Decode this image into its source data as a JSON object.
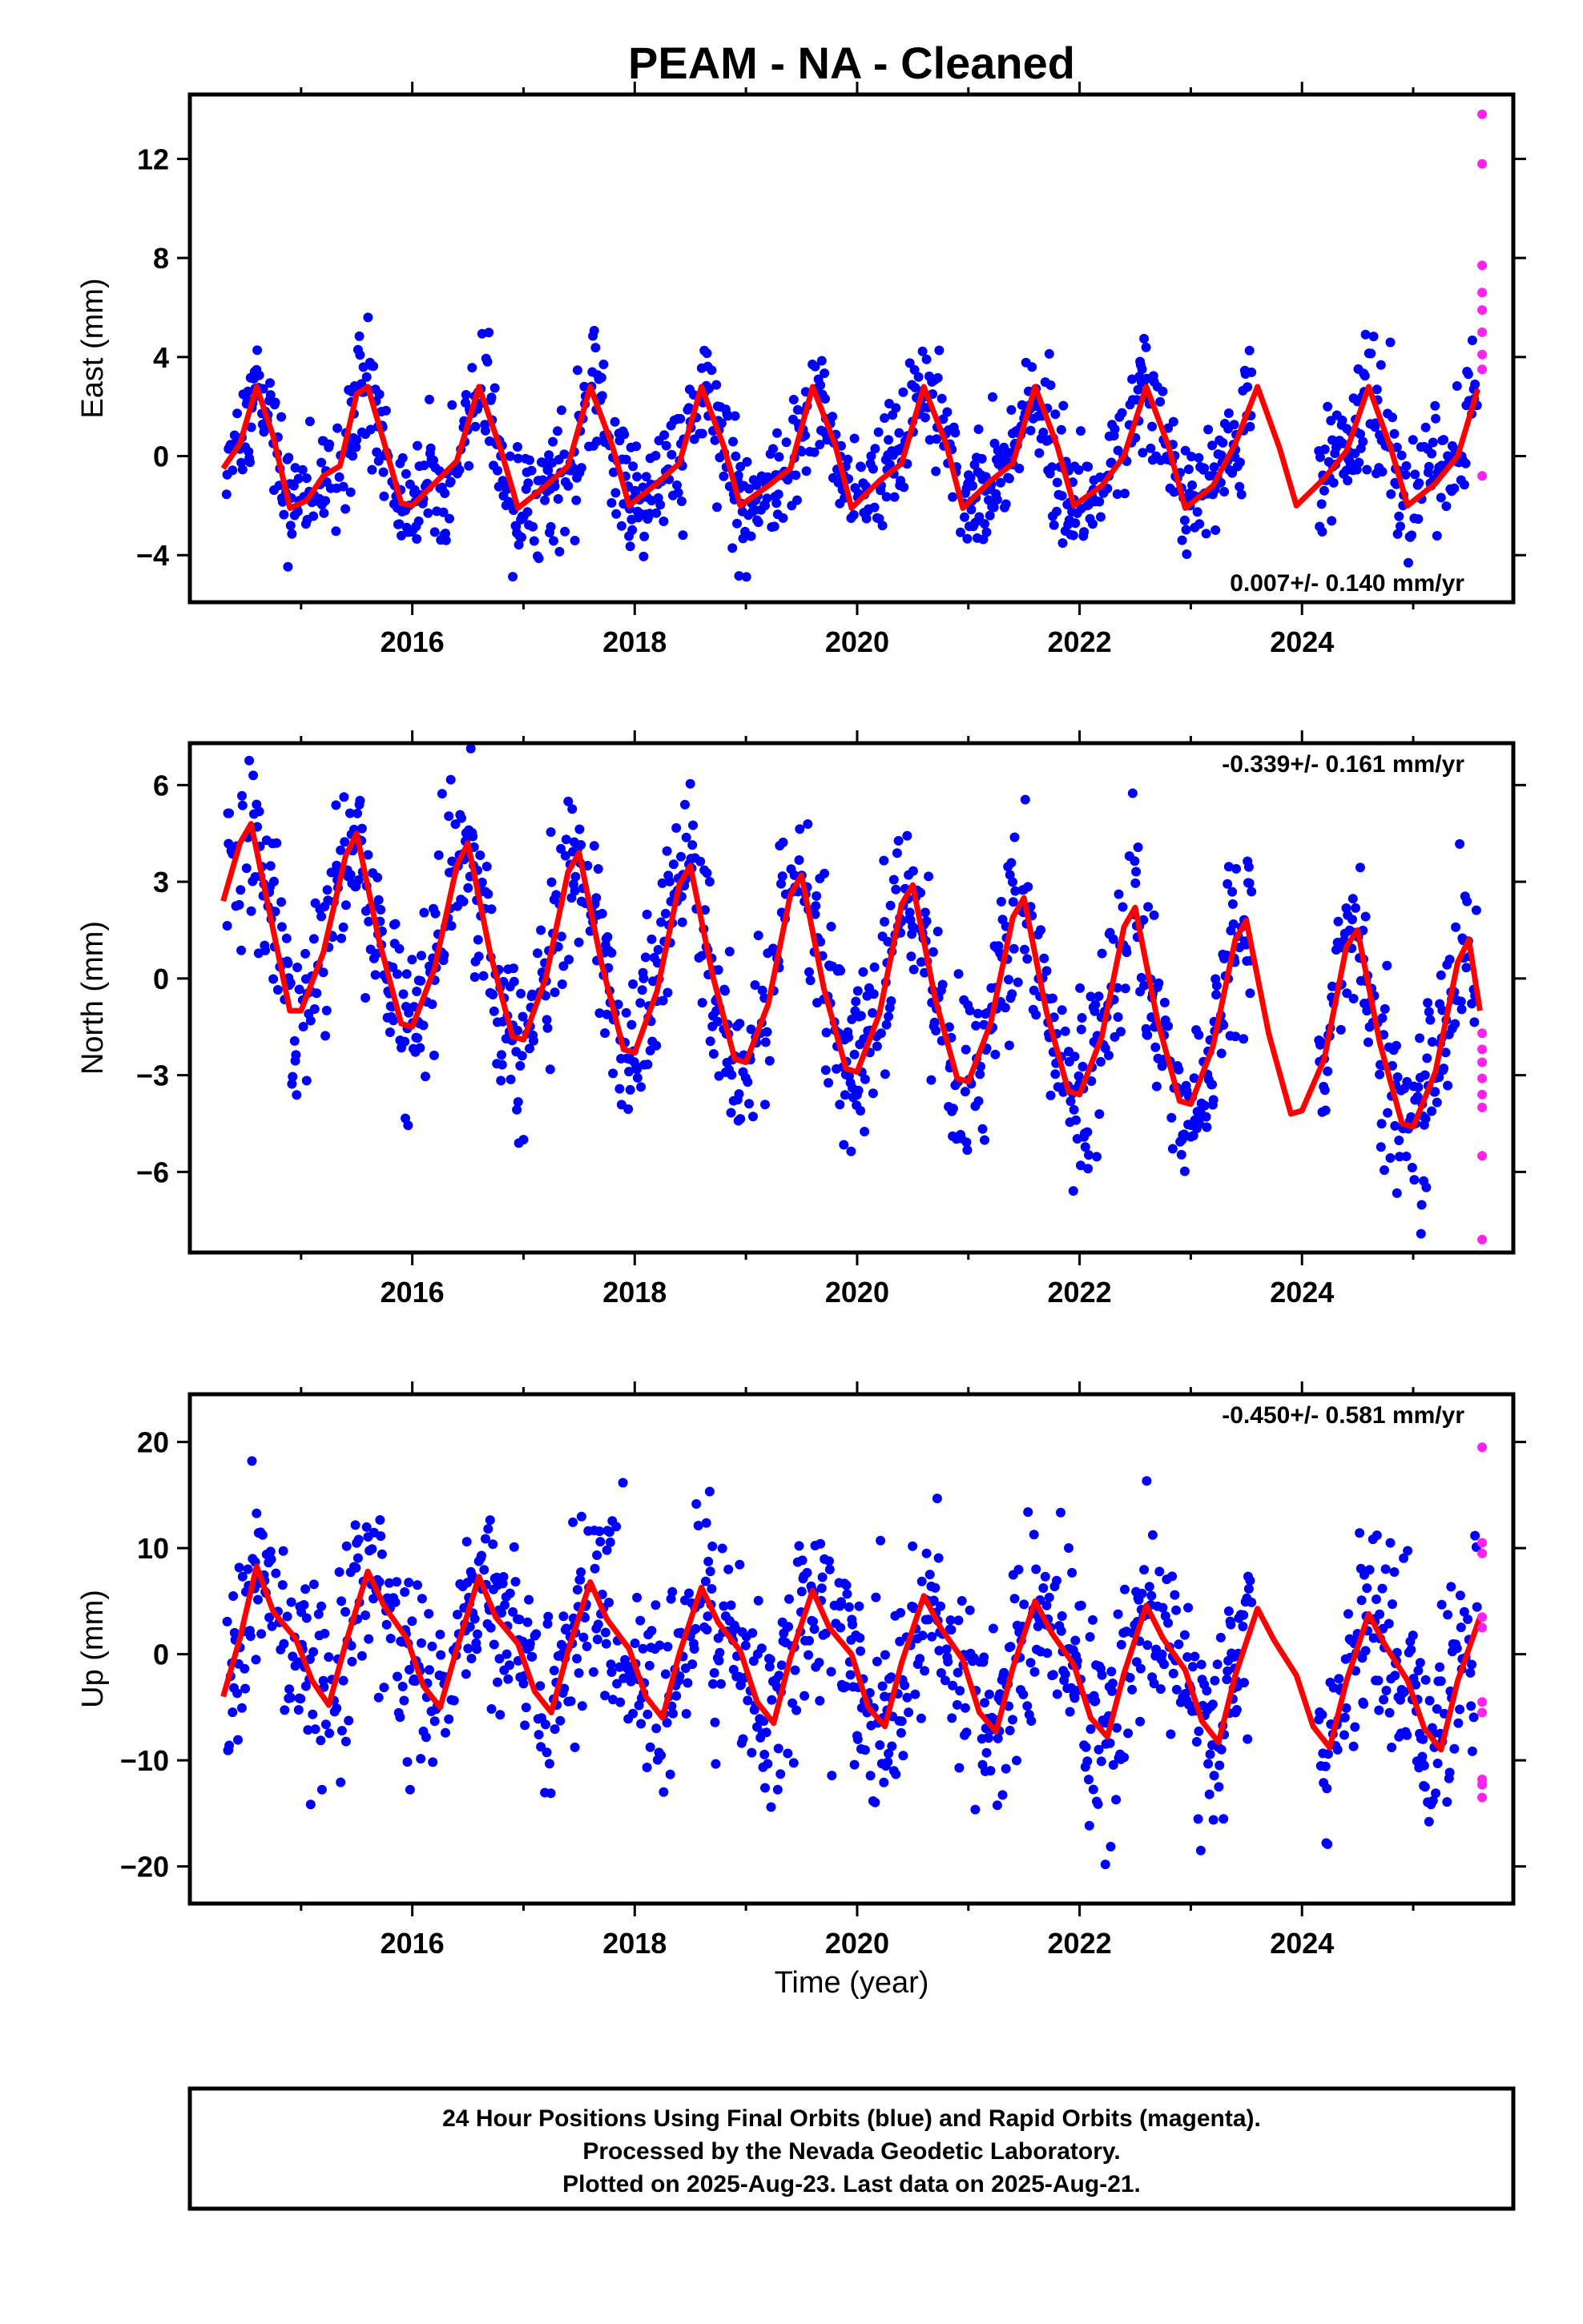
{
  "chart_data": {
    "title": "PEAM  - NA - Cleaned",
    "type": "scatter",
    "xlabel": "Time (year)",
    "x_ticks": [
      2016,
      2018,
      2020,
      2022,
      2024
    ],
    "x_tick_labels": [
      "2016",
      "2018",
      "2020",
      "2022",
      "2024"
    ],
    "xlim": [
      2014.0,
      2025.9
    ],
    "grid": false,
    "final_color": "#0000ff",
    "rapid_color": "#ff22ee",
    "fit_color": "#ff0000",
    "panels": [
      {
        "ylabel": "East (mm)",
        "ylim": [
          -5.9,
          14.6
        ],
        "y_ticks": [
          -4,
          0,
          4,
          8,
          12
        ],
        "rate_text": "0.007+/- 0.140 mm/yr",
        "rate_position": "bottom-right",
        "series": [
          {
            "kind": "fit",
            "color": "#ff0000",
            "x": [
              2014.3,
              2014.45,
              2014.6,
              2014.75,
              2014.9,
              2015.05,
              2015.2,
              2015.35,
              2015.5,
              2015.6,
              2015.75,
              2015.9,
              2016.0,
              2016.2,
              2016.4,
              2016.6,
              2016.8,
              2016.95,
              2017.2,
              2017.4,
              2017.6,
              2017.8,
              2017.95,
              2018.2,
              2018.4,
              2018.6,
              2018.8,
              2018.95,
              2019.2,
              2019.4,
              2019.6,
              2019.8,
              2019.95,
              2020.2,
              2020.4,
              2020.6,
              2020.8,
              2020.95,
              2021.2,
              2021.4,
              2021.6,
              2021.8,
              2021.95,
              2022.2,
              2022.4,
              2022.6,
              2022.8,
              2022.95,
              2023.2,
              2023.4,
              2023.6,
              2023.8,
              2023.95,
              2024.2,
              2024.4,
              2024.6,
              2024.8,
              2024.95,
              2025.2,
              2025.4,
              2025.58
            ],
            "y": [
              -0.5,
              0.5,
              2.8,
              0.8,
              -2.1,
              -1.8,
              -0.8,
              -0.4,
              2.5,
              2.8,
              0.5,
              -1.9,
              -2.0,
              -1.1,
              -0.2,
              2.8,
              0.2,
              -2.1,
              -1.2,
              -0.4,
              2.8,
              0.4,
              -2.0,
              -1.1,
              -0.3,
              2.8,
              0.4,
              -2.0,
              -1.2,
              -0.5,
              2.8,
              0.5,
              -2.1,
              -1.0,
              -0.3,
              2.8,
              0.5,
              -2.1,
              -1.0,
              -0.3,
              2.8,
              0.4,
              -2.0,
              -1.2,
              0.0,
              2.8,
              0.4,
              -2.1,
              -1.2,
              0.5,
              2.8,
              0.3,
              -2.0,
              -0.9,
              0.2,
              2.8,
              0.3,
              -2.0,
              -1.1,
              0.0,
              2.7
            ]
          },
          {
            "kind": "rapid",
            "color": "#ff22ee",
            "x": [
              2025.62,
              2025.62,
              2025.62,
              2025.62,
              2025.62,
              2025.62,
              2025.62,
              2025.62,
              2025.62
            ],
            "y": [
              13.8,
              11.8,
              7.7,
              6.6,
              5.9,
              5.0,
              4.1,
              3.5,
              -0.8
            ]
          }
        ]
      },
      {
        "ylabel": "North (mm)",
        "ylim": [
          -8.5,
          7.3
        ],
        "y_ticks": [
          -6,
          -3,
          0,
          3,
          6
        ],
        "rate_text": "-0.339+/- 0.161 mm/yr",
        "rate_position": "top-right",
        "series": [
          {
            "kind": "fit",
            "color": "#ff0000",
            "x": [
              2014.3,
              2014.45,
              2014.55,
              2014.75,
              2014.9,
              2015.0,
              2015.2,
              2015.4,
              2015.5,
              2015.7,
              2015.9,
              2016.0,
              2016.2,
              2016.4,
              2016.5,
              2016.7,
              2016.9,
              2017.0,
              2017.2,
              2017.4,
              2017.5,
              2017.7,
              2017.9,
              2018.0,
              2018.2,
              2018.4,
              2018.5,
              2018.7,
              2018.9,
              2019.0,
              2019.2,
              2019.4,
              2019.5,
              2019.7,
              2019.9,
              2020.0,
              2020.2,
              2020.4,
              2020.5,
              2020.7,
              2020.9,
              2021.0,
              2021.2,
              2021.4,
              2021.5,
              2021.7,
              2021.9,
              2022.0,
              2022.2,
              2022.4,
              2022.5,
              2022.7,
              2022.9,
              2023.0,
              2023.2,
              2023.4,
              2023.5,
              2023.7,
              2023.9,
              2024.0,
              2024.2,
              2024.4,
              2024.5,
              2024.7,
              2024.9,
              2025.0,
              2025.2,
              2025.4,
              2025.5,
              2025.6
            ],
            "y": [
              2.4,
              4.2,
              4.8,
              1.5,
              -1.0,
              -1.0,
              0.8,
              3.8,
              4.5,
              1.2,
              -1.4,
              -1.5,
              0.3,
              3.5,
              4.2,
              0.8,
              -1.8,
              -1.9,
              0.0,
              3.3,
              3.9,
              0.5,
              -2.2,
              -2.3,
              -0.4,
              2.9,
              3.5,
              0.1,
              -2.5,
              -2.6,
              -0.8,
              2.6,
              3.2,
              -0.3,
              -2.8,
              -2.9,
              -1.1,
              2.3,
              2.9,
              -0.6,
              -3.1,
              -3.2,
              -1.4,
              1.9,
              2.5,
              -1.0,
              -3.5,
              -3.6,
              -1.8,
              1.6,
              2.2,
              -1.3,
              -3.8,
              -3.9,
              -2.1,
              1.2,
              1.8,
              -1.7,
              -4.2,
              -4.1,
              -2.5,
              1.0,
              1.5,
              -2.0,
              -4.5,
              -4.6,
              -2.9,
              0.5,
              1.2,
              -1.0
            ]
          },
          {
            "kind": "rapid",
            "color": "#ff22ee",
            "x": [
              2025.62,
              2025.62,
              2025.62,
              2025.62,
              2025.62,
              2025.62,
              2025.62,
              2025.62
            ],
            "y": [
              -1.7,
              -2.2,
              -2.6,
              -3.1,
              -3.6,
              -4.0,
              -5.5,
              -8.1
            ]
          }
        ]
      },
      {
        "ylabel": "Up (mm)",
        "ylim": [
          -23.5,
          24.5
        ],
        "y_ticks": [
          -20,
          -10,
          0,
          10,
          20
        ],
        "rate_text": "-0.450+/- 0.581 mm/yr",
        "rate_position": "top-right",
        "series": [
          {
            "kind": "fit",
            "color": "#ff0000",
            "x": [
              2014.3,
              2014.45,
              2014.6,
              2014.75,
              2014.95,
              2015.1,
              2015.25,
              2015.4,
              2015.6,
              2015.75,
              2015.95,
              2016.1,
              2016.25,
              2016.4,
              2016.6,
              2016.75,
              2016.95,
              2017.1,
              2017.25,
              2017.4,
              2017.6,
              2017.75,
              2017.95,
              2018.1,
              2018.25,
              2018.4,
              2018.6,
              2018.75,
              2018.95,
              2019.1,
              2019.25,
              2019.4,
              2019.6,
              2019.75,
              2019.95,
              2020.1,
              2020.25,
              2020.4,
              2020.6,
              2020.75,
              2020.95,
              2021.1,
              2021.25,
              2021.4,
              2021.6,
              2021.75,
              2021.95,
              2022.1,
              2022.25,
              2022.4,
              2022.6,
              2022.75,
              2022.95,
              2023.1,
              2023.25,
              2023.4,
              2023.6,
              2023.75,
              2023.95,
              2024.1,
              2024.25,
              2024.4,
              2024.6,
              2024.75,
              2024.95,
              2025.1,
              2025.25,
              2025.4,
              2025.6
            ],
            "y": [
              -4.0,
              1.5,
              8.3,
              4.0,
              1.5,
              -2.5,
              -4.8,
              1.0,
              7.8,
              4.5,
              1.5,
              -3.0,
              -5.0,
              0.5,
              7.3,
              3.5,
              1.0,
              -3.5,
              -5.5,
              0.3,
              6.8,
              3.3,
              0.5,
              -4.0,
              -6.0,
              0.0,
              6.3,
              3.0,
              0.3,
              -4.5,
              -6.5,
              -0.3,
              6.0,
              2.5,
              0.0,
              -5.0,
              -6.8,
              -0.8,
              5.5,
              2.5,
              -0.5,
              -5.5,
              -7.3,
              -1.3,
              5.0,
              2.0,
              -1.0,
              -6.0,
              -7.8,
              -1.8,
              4.6,
              1.5,
              -1.5,
              -6.3,
              -8.3,
              -2.0,
              4.3,
              1.3,
              -2.0,
              -6.8,
              -8.8,
              -2.5,
              3.8,
              0.8,
              -2.5,
              -7.0,
              -9.0,
              -2.5,
              3.5
            ]
          },
          {
            "kind": "rapid",
            "color": "#ff22ee",
            "x": [
              2025.62,
              2025.62,
              2025.62,
              2025.62,
              2025.62,
              2025.62,
              2025.62,
              2025.62,
              2025.62,
              2025.62
            ],
            "y": [
              19.5,
              10.5,
              9.5,
              3.5,
              2.5,
              -4.5,
              -5.5,
              -11.8,
              -12.3,
              -13.5
            ]
          }
        ]
      }
    ]
  },
  "footer": {
    "line1": "24 Hour Positions Using Final Orbits (blue) and Rapid Orbits (magenta).",
    "line2": "Processed by the Nevada Geodetic Laboratory.",
    "line3": "Plotted on 2025-Aug-23. Last data on 2025-Aug-21."
  }
}
